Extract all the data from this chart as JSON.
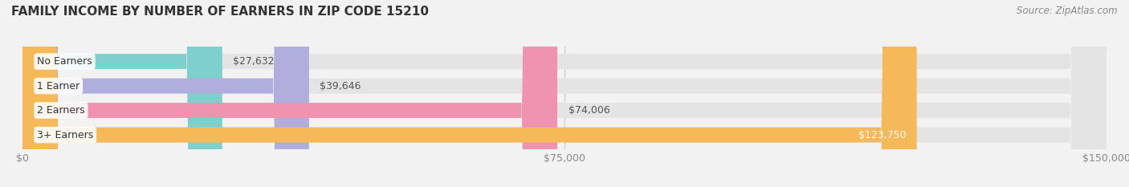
{
  "title": "FAMILY INCOME BY NUMBER OF EARNERS IN ZIP CODE 15210",
  "source": "Source: ZipAtlas.com",
  "categories": [
    "No Earners",
    "1 Earner",
    "2 Earners",
    "3+ Earners"
  ],
  "values": [
    27632,
    39646,
    74006,
    123750
  ],
  "bar_colors": [
    "#7dd0cc",
    "#b0aedd",
    "#f093b0",
    "#f5b95a"
  ],
  "bar_labels": [
    "$27,632",
    "$39,646",
    "$74,006",
    "$123,750"
  ],
  "label_on_bar": [
    false,
    false,
    false,
    true
  ],
  "xlim": [
    0,
    150000
  ],
  "xticks": [
    0,
    75000,
    150000
  ],
  "xticklabels": [
    "$0",
    "$75,000",
    "$150,000"
  ],
  "background_color": "#f2f2f2",
  "bar_bg_color": "#e4e4e4",
  "bar_height": 0.62,
  "title_fontsize": 11,
  "source_fontsize": 8.5,
  "label_fontsize": 9,
  "tick_fontsize": 9,
  "cat_fontsize": 9
}
